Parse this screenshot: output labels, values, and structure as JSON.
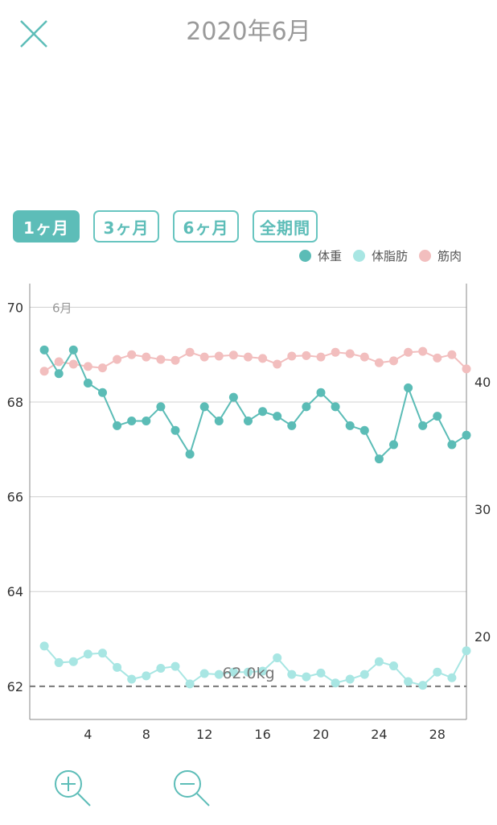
{
  "header": {
    "title": "2020年6月",
    "close_icon": "close-icon"
  },
  "range_tabs": [
    {
      "label": "1ヶ月",
      "active": true
    },
    {
      "label": "3ヶ月",
      "active": false
    },
    {
      "label": "6ヶ月",
      "active": false
    },
    {
      "label": "全期間",
      "active": false
    }
  ],
  "legend": [
    {
      "label": "体重",
      "color": "#5bbcb6"
    },
    {
      "label": "体脂肪",
      "color": "#a8e6e3"
    },
    {
      "label": "筋肉",
      "color": "#f2bebe"
    }
  ],
  "chart_data": {
    "type": "line",
    "month_label": "6月",
    "goal_label": "62.0kg",
    "goal_value": 62.0,
    "x": [
      1,
      2,
      3,
      4,
      5,
      6,
      7,
      8,
      9,
      10,
      11,
      12,
      13,
      14,
      15,
      16,
      17,
      18,
      19,
      20,
      21,
      22,
      23,
      24,
      25,
      26,
      27,
      28,
      29,
      30
    ],
    "xticks": [
      "4",
      "8",
      "12",
      "16",
      "20",
      "24",
      "28"
    ],
    "xtick_values": [
      4,
      8,
      12,
      16,
      20,
      24,
      28
    ],
    "xlim": [
      0,
      30
    ],
    "y_left": {
      "ticks": [
        "62",
        "64",
        "66",
        "68",
        "70"
      ],
      "tick_values": [
        62,
        64,
        66,
        68,
        70
      ],
      "range": [
        61.3,
        70.5
      ]
    },
    "y_right": {
      "ticks": [
        "20",
        "30",
        "40"
      ],
      "tick_values": [
        20,
        30,
        40
      ],
      "range": [
        13.5,
        47.7
      ]
    },
    "series": [
      {
        "name": "筋肉",
        "axis": "left",
        "color": "#f2bebe",
        "values": [
          68.65,
          68.85,
          68.8,
          68.75,
          68.72,
          68.9,
          69.0,
          68.95,
          68.9,
          68.88,
          69.05,
          68.95,
          68.97,
          68.99,
          68.95,
          68.92,
          68.8,
          68.97,
          68.98,
          68.95,
          69.05,
          69.02,
          68.95,
          68.83,
          68.87,
          69.05,
          69.07,
          68.93,
          69.0,
          68.7
        ]
      },
      {
        "name": "体重",
        "axis": "left",
        "color": "#5bbcb6",
        "values": [
          69.1,
          68.6,
          69.1,
          68.4,
          68.2,
          67.5,
          67.6,
          67.6,
          67.9,
          67.4,
          66.9,
          67.9,
          67.6,
          68.1,
          67.6,
          67.8,
          67.7,
          67.5,
          67.9,
          68.2,
          67.9,
          67.5,
          67.4,
          66.8,
          67.1,
          68.3,
          67.5,
          67.7,
          67.1,
          67.3
        ]
      },
      {
        "name": "体脂肪",
        "axis": "left",
        "color": "#a8e6e3",
        "values": [
          62.85,
          62.5,
          62.52,
          62.68,
          62.7,
          62.4,
          62.15,
          62.22,
          62.38,
          62.42,
          62.05,
          62.27,
          62.25,
          62.3,
          62.3,
          62.32,
          62.6,
          62.25,
          62.2,
          62.28,
          62.07,
          62.15,
          62.25,
          62.52,
          62.43,
          62.1,
          62.02,
          62.3,
          62.18,
          62.75
        ]
      }
    ]
  },
  "zoom": {
    "in_icon": "zoom-in-icon",
    "out_icon": "zoom-out-icon"
  }
}
